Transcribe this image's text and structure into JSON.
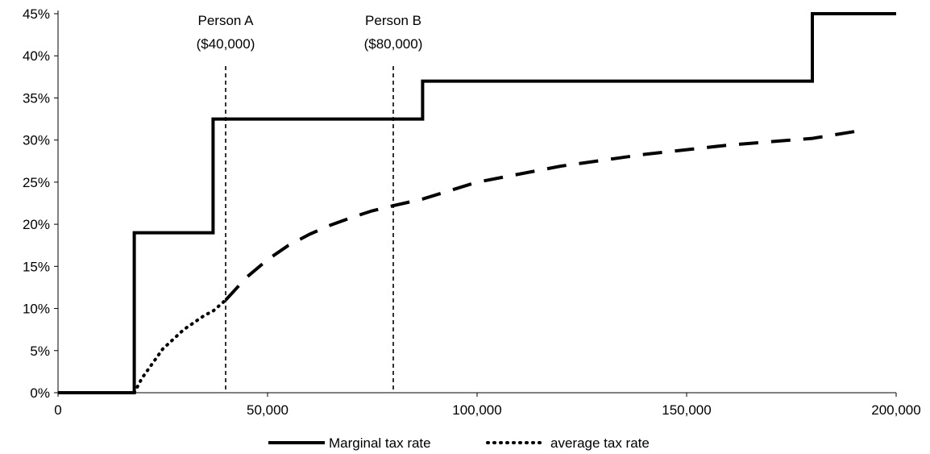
{
  "chart_data": {
    "type": "line",
    "title": "",
    "xlabel": "",
    "ylabel": "",
    "xlim": [
      0,
      200000
    ],
    "ylim": [
      0,
      0.45
    ],
    "x_ticks": [
      0,
      50000,
      100000,
      150000,
      200000
    ],
    "x_tick_labels": [
      "0",
      "50,000",
      "100,000",
      "150,000",
      "200,000"
    ],
    "y_ticks": [
      0,
      0.05,
      0.1,
      0.15,
      0.2,
      0.25,
      0.3,
      0.35,
      0.4,
      0.45
    ],
    "y_tick_labels": [
      "0%",
      "5%",
      "10%",
      "15%",
      "20%",
      "25%",
      "30%",
      "35%",
      "40%",
      "45%"
    ],
    "grid": false,
    "legend_position": "bottom",
    "series": [
      {
        "name": "Marginal tax rate",
        "style": "solid",
        "color": "#000000",
        "points": [
          [
            0,
            0
          ],
          [
            18200,
            0
          ],
          [
            18200,
            0.19
          ],
          [
            37000,
            0.19
          ],
          [
            37000,
            0.325
          ],
          [
            87000,
            0.325
          ],
          [
            87000,
            0.37
          ],
          [
            180000,
            0.37
          ],
          [
            180000,
            0.45
          ],
          [
            200000,
            0.45
          ]
        ]
      },
      {
        "name": "average tax rate",
        "style": "dotted-then-dashed",
        "color": "#000000",
        "switch_x": 40000,
        "points": [
          [
            18200,
            0
          ],
          [
            20000,
            0.017
          ],
          [
            25000,
            0.052
          ],
          [
            30000,
            0.075
          ],
          [
            35000,
            0.092
          ],
          [
            37000,
            0.097
          ],
          [
            40000,
            0.11
          ],
          [
            45000,
            0.137
          ],
          [
            50000,
            0.158
          ],
          [
            55000,
            0.175
          ],
          [
            60000,
            0.188
          ],
          [
            65000,
            0.199
          ],
          [
            70000,
            0.208
          ],
          [
            75000,
            0.216
          ],
          [
            80000,
            0.222
          ],
          [
            87000,
            0.23
          ],
          [
            100000,
            0.25
          ],
          [
            120000,
            0.269
          ],
          [
            140000,
            0.283
          ],
          [
            160000,
            0.294
          ],
          [
            180000,
            0.302
          ],
          [
            190000,
            0.31
          ]
        ]
      }
    ],
    "annotations": [
      {
        "x": 40000,
        "line1": "Person A",
        "line2": "($40,000)"
      },
      {
        "x": 80000,
        "line1": "Person B",
        "line2": "($80,000)"
      }
    ]
  }
}
